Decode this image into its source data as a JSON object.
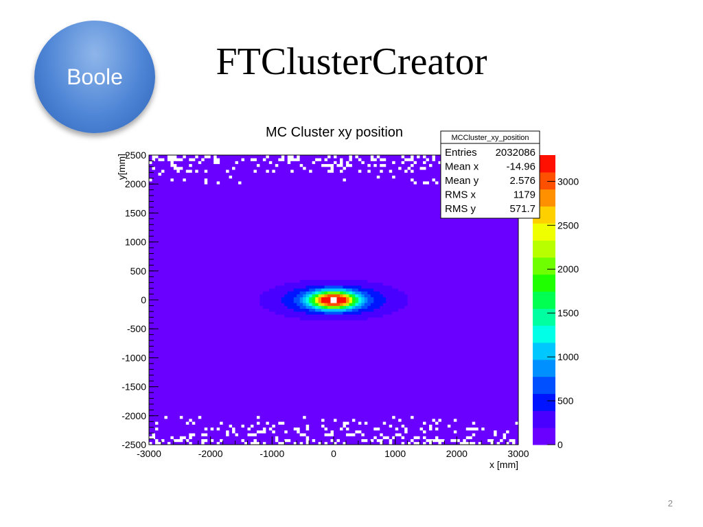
{
  "slide": {
    "badge_label": "Boole",
    "title": "FTClusterCreator",
    "page_number": "2"
  },
  "colors": {
    "background": "#ffffff",
    "badge": "#4f86d6",
    "frame_fill": "#6800ff"
  },
  "chart_data": {
    "type": "heatmap",
    "title": "MC Cluster xy position",
    "xlabel": "x [mm]",
    "ylabel": "y[mm]",
    "xlim": [
      -3000,
      3000
    ],
    "ylim": [
      -2500,
      2500
    ],
    "x_ticks": [
      -3000,
      -2000,
      -1000,
      0,
      1000,
      2000,
      3000
    ],
    "y_ticks": [
      -2500,
      -2000,
      -1500,
      -1000,
      -500,
      0,
      500,
      1000,
      1500,
      2000,
      2500
    ],
    "color_scale": {
      "range": [
        0,
        3300
      ],
      "labels": [
        0,
        500,
        1000,
        1500,
        2000,
        2500,
        3000
      ],
      "palette": [
        "#6a00ff",
        "#4a00ff",
        "#0014ff",
        "#0050ff",
        "#0090ff",
        "#00c8ff",
        "#00ffe6",
        "#00ffa0",
        "#00ff50",
        "#1fff00",
        "#70ff00",
        "#b8ff00",
        "#f0ff00",
        "#ffd000",
        "#ff9000",
        "#ff5000",
        "#ff1000"
      ]
    },
    "stats_box": {
      "name": "MCCluster_xy_position",
      "rows": [
        {
          "label": "Entries",
          "value": "2032086"
        },
        {
          "label": "Mean x",
          "value": "-14.96"
        },
        {
          "label": "Mean y",
          "value": "2.576"
        },
        {
          "label": "RMS x",
          "value": "1179"
        },
        {
          "label": "RMS y",
          "value": "571.7"
        }
      ]
    },
    "features": {
      "base_level": 40,
      "beam_hole_center": [
        0,
        0
      ],
      "beam_hole_radius": [
        60,
        60
      ],
      "core": {
        "center": [
          0,
          0
        ],
        "peak": 3300,
        "sigma_x": 240,
        "sigma_y": 95
      },
      "halo": {
        "center": [
          0,
          0
        ],
        "amplitude": 700,
        "sigma_x": 700,
        "sigma_y": 210
      },
      "sparse_edges_y": [
        [
          -2500,
          -2000
        ],
        [
          2000,
          2500
        ]
      ]
    }
  }
}
